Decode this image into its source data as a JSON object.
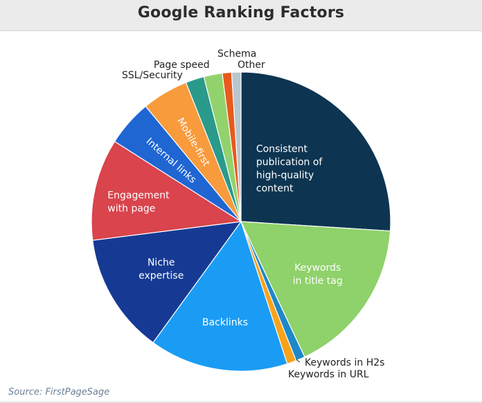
{
  "chart_data": {
    "type": "pie",
    "title": "Google Ranking Factors",
    "source": "Source: FirstPageSage",
    "slices": [
      {
        "label": "Consistent publication of high-quality content",
        "lines": [
          "Consistent",
          "publication of",
          "high-quality",
          "content"
        ],
        "value": 26,
        "color": "#0d3551",
        "label_pos": "inside"
      },
      {
        "label": "Keywords in title tag",
        "lines": [
          "Keywords",
          "in title tag"
        ],
        "value": 17,
        "color": "#8fd16a",
        "label_pos": "inside"
      },
      {
        "label": "Keywords in H2s",
        "lines": [
          "Keywords in H2s"
        ],
        "value": 1,
        "color": "#1e88c9",
        "label_pos": "outside"
      },
      {
        "label": "Keywords in URL",
        "lines": [
          "Keywords in URL"
        ],
        "value": 1,
        "color": "#f8a21c",
        "label_pos": "outside"
      },
      {
        "label": "Backlinks",
        "lines": [
          "Backlinks"
        ],
        "value": 15,
        "color": "#1a9cf5",
        "label_pos": "inside"
      },
      {
        "label": "Niche expertise",
        "lines": [
          "Niche",
          "expertise"
        ],
        "value": 13,
        "color": "#163a93",
        "label_pos": "inside"
      },
      {
        "label": "Engagement with page",
        "lines": [
          "Engagement",
          "with page"
        ],
        "value": 11,
        "color": "#d9444d",
        "label_pos": "inside"
      },
      {
        "label": "Internal links",
        "lines": [
          "Internal links"
        ],
        "value": 5,
        "color": "#1f66d3",
        "label_pos": "inside-rotated"
      },
      {
        "label": "Mobile-first",
        "lines": [
          "Mobile-first"
        ],
        "value": 5,
        "color": "#f89b3c",
        "label_pos": "inside-rotated"
      },
      {
        "label": "SSL/Security",
        "lines": [
          "SSL/Security"
        ],
        "value": 2,
        "color": "#2a9a8b",
        "label_pos": "outside"
      },
      {
        "label": "Page speed",
        "lines": [
          "Page speed"
        ],
        "value": 2,
        "color": "#92d26d",
        "label_pos": "outside"
      },
      {
        "label": "Schema",
        "lines": [
          "Schema"
        ],
        "value": 1,
        "color": "#e85a1c",
        "label_pos": "outside"
      },
      {
        "label": "Other",
        "lines": [
          "Other"
        ],
        "value": 1,
        "color": "#b8c6cf",
        "label_pos": "outside"
      }
    ]
  }
}
